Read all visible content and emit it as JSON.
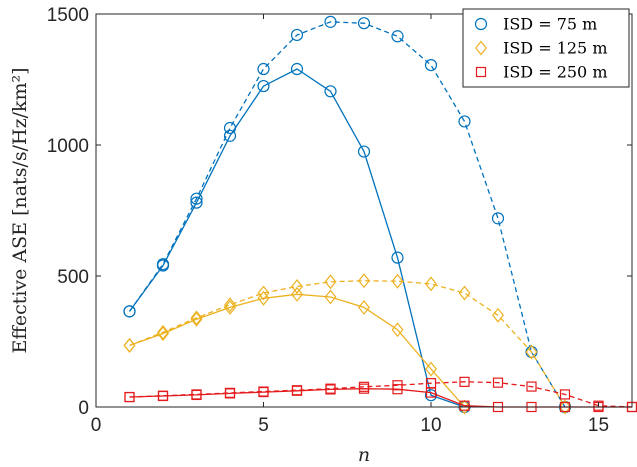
{
  "chart_data": {
    "type": "line",
    "xlabel": "n",
    "ylabel": "Effective ASE [nats/s/Hz/km²]",
    "xlim": [
      0,
      16
    ],
    "ylim": [
      0,
      1500
    ],
    "xticks": [
      0,
      5,
      10,
      15
    ],
    "yticks": [
      0,
      500,
      1000,
      1500
    ],
    "grid": false,
    "legend_position": "top-right",
    "series": [
      {
        "name": "ISD = 75 m",
        "marker": "circle",
        "color": "#0072BD",
        "dashed": {
          "x": [
            1,
            2,
            3,
            4,
            5,
            6,
            7,
            8,
            9,
            10,
            11,
            12,
            13,
            14
          ],
          "y": [
            365,
            545,
            795,
            1065,
            1290,
            1420,
            1470,
            1465,
            1415,
            1305,
            1090,
            720,
            210,
            0
          ]
        },
        "solid": {
          "x": [
            1,
            2,
            3,
            4,
            5,
            6,
            7,
            8,
            9,
            10,
            11
          ],
          "y": [
            365,
            540,
            780,
            1035,
            1225,
            1290,
            1205,
            975,
            570,
            45,
            0
          ]
        }
      },
      {
        "name": "ISD = 125 m",
        "marker": "diamond",
        "color": "#EDB120",
        "dashed": {
          "x": [
            1,
            2,
            3,
            4,
            5,
            6,
            7,
            8,
            9,
            10,
            11,
            12,
            13,
            14
          ],
          "y": [
            235,
            285,
            340,
            390,
            435,
            460,
            478,
            482,
            480,
            470,
            435,
            350,
            210,
            0
          ]
        },
        "solid": {
          "x": [
            1,
            2,
            3,
            4,
            5,
            6,
            7,
            8,
            9,
            10,
            11
          ],
          "y": [
            235,
            280,
            335,
            380,
            415,
            430,
            420,
            380,
            295,
            145,
            0
          ]
        }
      },
      {
        "name": "ISD = 250 m",
        "marker": "square",
        "color": "#E41A1C",
        "dashed": {
          "x": [
            1,
            2,
            3,
            4,
            5,
            6,
            7,
            8,
            9,
            10,
            11,
            12,
            13,
            14,
            15,
            16
          ],
          "y": [
            38,
            43,
            48,
            54,
            59,
            64,
            70,
            77,
            83,
            91,
            96,
            93,
            78,
            48,
            5,
            0
          ]
        },
        "solid": {
          "x": [
            1,
            2,
            3,
            4,
            5,
            6,
            7,
            8,
            9,
            10,
            11,
            12,
            13,
            14,
            15,
            16
          ],
          "y": [
            38,
            42,
            46,
            52,
            57,
            62,
            67,
            70,
            68,
            55,
            5,
            0,
            0,
            0,
            0,
            0
          ]
        }
      }
    ]
  }
}
